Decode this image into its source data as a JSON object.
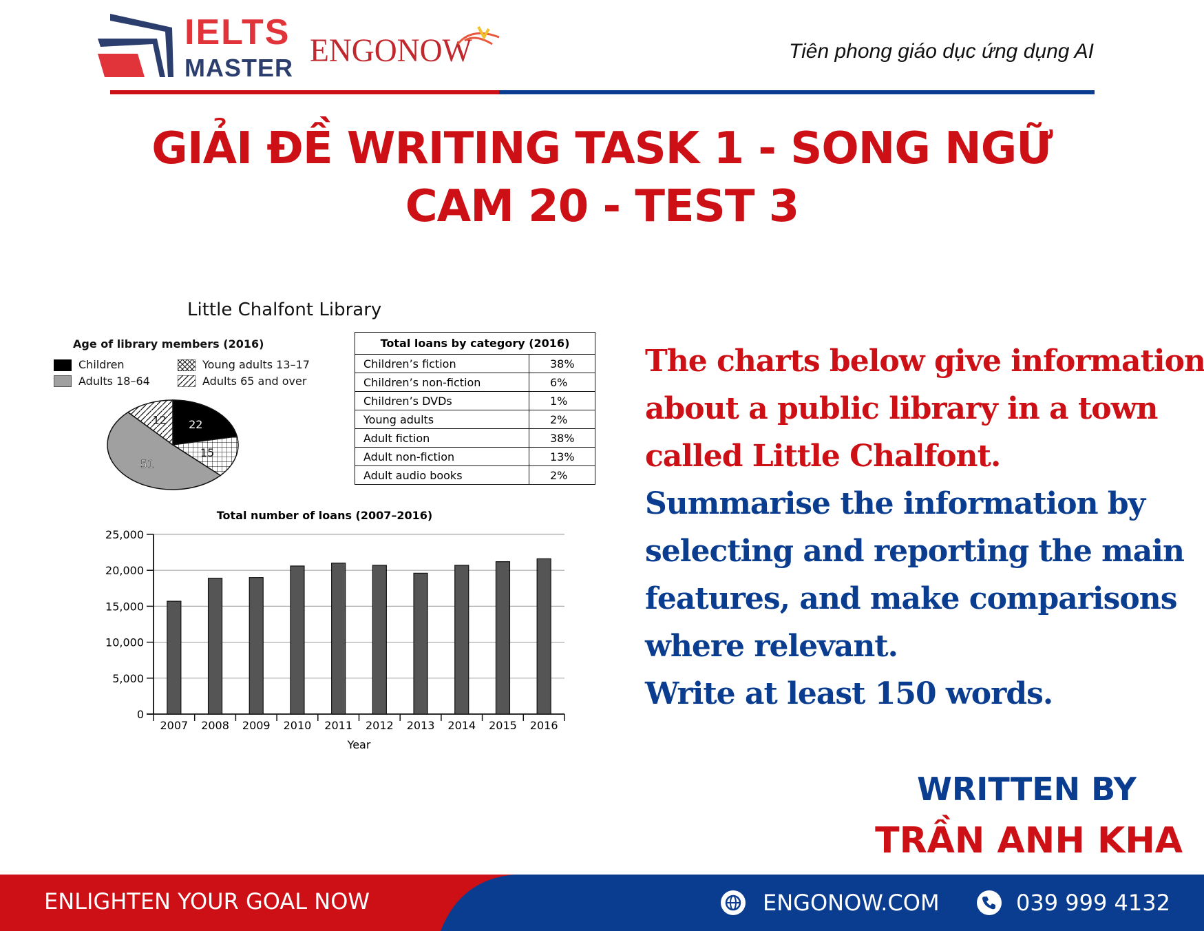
{
  "header": {
    "logo_ielts": "IELTS",
    "logo_master": "MASTER",
    "logo_engonow": "ENGONOW",
    "tagline": "Tiên phong giáo dục ứng dụng AI"
  },
  "title": {
    "line1": "GIẢI ĐỀ WRITING TASK 1 - SONG NGỮ",
    "line2": "CAM 20 -  TEST 3"
  },
  "figure": {
    "title": "Little Chalfont Library",
    "chart_data": [
      {
        "type": "pie",
        "title": "Age of library members (2016)",
        "categories": [
          "Children",
          "Young adults 13–17",
          "Adults 18–64",
          "Adults 65 and over"
        ],
        "values": [
          22,
          15,
          51,
          12
        ],
        "legend_placement": "top"
      },
      {
        "type": "table",
        "title": "Total loans by category (2016)",
        "rows": [
          [
            "Children’s fiction",
            "38%"
          ],
          [
            "Children’s non-fiction",
            "6%"
          ],
          [
            "Children’s DVDs",
            "1%"
          ],
          [
            "Young adults",
            "2%"
          ],
          [
            "Adult fiction",
            "38%"
          ],
          [
            "Adult non-fiction",
            "13%"
          ],
          [
            "Adult audio books",
            "2%"
          ]
        ]
      },
      {
        "type": "bar",
        "title": "Total number of loans (2007–2016)",
        "xlabel": "Year",
        "ylabel": "",
        "categories": [
          "2007",
          "2008",
          "2009",
          "2010",
          "2011",
          "2012",
          "2013",
          "2014",
          "2015",
          "2016"
        ],
        "values": [
          15700,
          18900,
          19000,
          20600,
          21000,
          20700,
          19600,
          20700,
          21200,
          21600
        ],
        "ylim": [
          0,
          25000
        ],
        "yticks": [
          "0",
          "5,000",
          "10,000",
          "15,000",
          "20,000",
          "25,000"
        ],
        "grid": true,
        "bar_color": "#555555"
      }
    ]
  },
  "prompt": {
    "red_lines": [
      "The charts below give information",
      "about a public library in a town",
      "called Little Chalfont."
    ],
    "blue_lines": [
      "Summarise the information by",
      "selecting and reporting the main",
      "features, and make comparisons",
      "where relevant.",
      "Write at least 150 words."
    ]
  },
  "credit": {
    "written_by": "WRITTEN BY",
    "author": "TRẦN ANH KHA"
  },
  "footer": {
    "slogan": "ENLIGHTEN YOUR GOAL NOW",
    "website": "ENGONOW.COM",
    "phone": "039 999 4132",
    "red": "#cc1016",
    "blue": "#0a3d8f"
  }
}
